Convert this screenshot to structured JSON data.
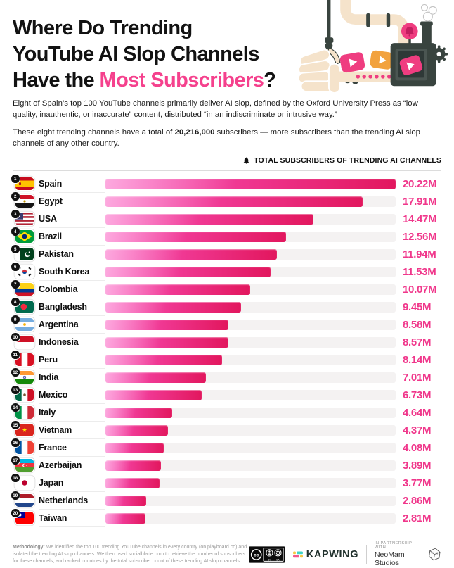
{
  "page": {
    "title_line1": "Where Do Trending",
    "title_line2": "YouTube AI Slop Channels",
    "title_line3_prefix": "Have the ",
    "title_line3_highlight": "Most Subscribers",
    "title_line3_suffix": "?",
    "accent_color": "#F5418D"
  },
  "intro": {
    "p1": "Eight of Spain’s top 100 YouTube channels primarily deliver AI slop, defined by the Oxford University Press as “low quality, inauthentic, or inaccurate” content, distributed “in an indiscriminate or intrusive way.”",
    "p2_prefix": "These eight trending channels have a total of ",
    "p2_bold": "20,216,000",
    "p2_suffix": " subscribers — more subscribers than the trending AI slop channels of any other country."
  },
  "legend": {
    "label": "TOTAL SUBSCRIBERS OF TRENDING AI CHANNELS",
    "icon": "bell-icon"
  },
  "chart_data": {
    "type": "bar",
    "orientation": "horizontal",
    "title": "Where Do Trending YouTube AI Slop Channels Have the Most Subscribers?",
    "value_unit": "M subscribers",
    "max_value": 20.22,
    "bar_gradient": [
      "#FB53BE",
      "#E2175E"
    ],
    "track_color": "#F4F2F2",
    "value_color": "#F0378B",
    "rows": [
      {
        "rank": 1,
        "country": "Spain",
        "flag": "es",
        "value": 20.22,
        "label": "20.22M"
      },
      {
        "rank": 2,
        "country": "Egypt",
        "flag": "eg",
        "value": 17.91,
        "label": "17.91M"
      },
      {
        "rank": 3,
        "country": "USA",
        "flag": "us",
        "value": 14.47,
        "label": "14.47M"
      },
      {
        "rank": 4,
        "country": "Brazil",
        "flag": "br",
        "value": 12.56,
        "label": "12.56M"
      },
      {
        "rank": 5,
        "country": "Pakistan",
        "flag": "pk",
        "value": 11.94,
        "label": "11.94M"
      },
      {
        "rank": 6,
        "country": "South Korea",
        "flag": "kr",
        "value": 11.53,
        "label": "11.53M"
      },
      {
        "rank": 7,
        "country": "Colombia",
        "flag": "co",
        "value": 10.07,
        "label": "10.07M"
      },
      {
        "rank": 8,
        "country": "Bangladesh",
        "flag": "bd",
        "value": 9.45,
        "label": "9.45M"
      },
      {
        "rank": 9,
        "country": "Argentina",
        "flag": "ar",
        "value": 8.58,
        "label": "8.58M"
      },
      {
        "rank": 10,
        "country": "Indonesia",
        "flag": "id",
        "value": 8.57,
        "label": "8.57M"
      },
      {
        "rank": 11,
        "country": "Peru",
        "flag": "pe",
        "value": 8.14,
        "label": "8.14M"
      },
      {
        "rank": 12,
        "country": "India",
        "flag": "in",
        "value": 7.01,
        "label": "7.01M"
      },
      {
        "rank": 13,
        "country": "Mexico",
        "flag": "mx",
        "value": 6.73,
        "label": "6.73M"
      },
      {
        "rank": 14,
        "country": "Italy",
        "flag": "it",
        "value": 4.64,
        "label": "4.64M"
      },
      {
        "rank": 15,
        "country": "Vietnam",
        "flag": "vn",
        "value": 4.37,
        "label": "4.37M"
      },
      {
        "rank": 16,
        "country": "France",
        "flag": "fr",
        "value": 4.08,
        "label": "4.08M"
      },
      {
        "rank": 17,
        "country": "Azerbaijan",
        "flag": "az",
        "value": 3.89,
        "label": "3.89M"
      },
      {
        "rank": 18,
        "country": "Japan",
        "flag": "jp",
        "value": 3.77,
        "label": "3.77M"
      },
      {
        "rank": 19,
        "country": "Netherlands",
        "flag": "nl",
        "value": 2.86,
        "label": "2.86M"
      },
      {
        "rank": 20,
        "country": "Taiwan",
        "flag": "tw",
        "value": 2.81,
        "label": "2.81M"
      }
    ]
  },
  "footer": {
    "methodology_label": "Methodology:",
    "methodology_text": " We identified the top 100 trending YouTube channels in every country (on playboard.co) and isolated the trending AI slop channels. We then used socialblade.com to retrieve the number of subscribers for these channels, and ranked countries by the total subscriber count of these trending AI slop channels.",
    "license": {
      "cc": "cc",
      "by": "BY",
      "sa": "SA"
    },
    "brand": "KAPWING",
    "partnership_label": "IN PARTNERSHIP WITH",
    "partner": "NeoMam Studios",
    "neomam_icon": {
      "n": "N",
      "s": "S"
    }
  }
}
